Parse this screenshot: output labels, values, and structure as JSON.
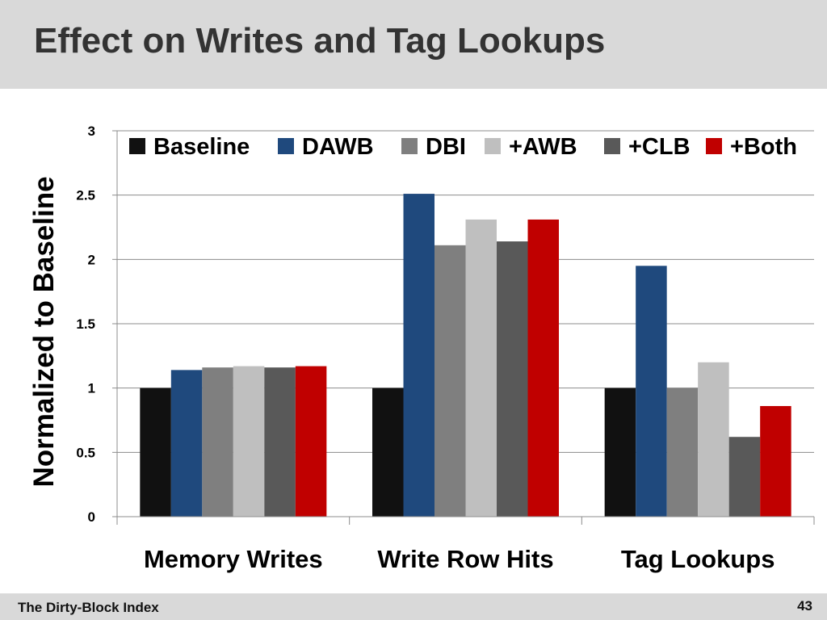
{
  "slide": {
    "title": "Effect on Writes and Tag Lookups",
    "footer": "The Dirty-Block Index",
    "page_number": "43"
  },
  "chart_data": {
    "type": "bar",
    "ylabel": "Normalized to Baseline",
    "xlabel": "",
    "ylim": [
      0,
      3
    ],
    "yticks": [
      0,
      0.5,
      1,
      1.5,
      2,
      2.5,
      3
    ],
    "ytick_labels": [
      "0",
      "0.5",
      "1",
      "1.5",
      "2",
      "2.5",
      "3"
    ],
    "grid": true,
    "legend": "top",
    "categories": [
      "Memory Writes",
      "Write Row Hits",
      "Tag Lookups"
    ],
    "series": [
      {
        "name": "Baseline",
        "color": "#111111",
        "values": [
          1.0,
          1.0,
          1.0
        ]
      },
      {
        "name": "DAWB",
        "color": "#1f497d",
        "values": [
          1.14,
          2.51,
          1.95
        ]
      },
      {
        "name": "DBI",
        "color": "#7f7f7f",
        "values": [
          1.16,
          2.11,
          1.0
        ]
      },
      {
        "name": "+AWB",
        "color": "#bfbfbf",
        "values": [
          1.17,
          2.31,
          1.2
        ]
      },
      {
        "name": "+CLB",
        "color": "#595959",
        "values": [
          1.16,
          2.14,
          0.62
        ]
      },
      {
        "name": "+Both",
        "color": "#c00000",
        "values": [
          1.17,
          2.31,
          0.86
        ]
      }
    ]
  }
}
